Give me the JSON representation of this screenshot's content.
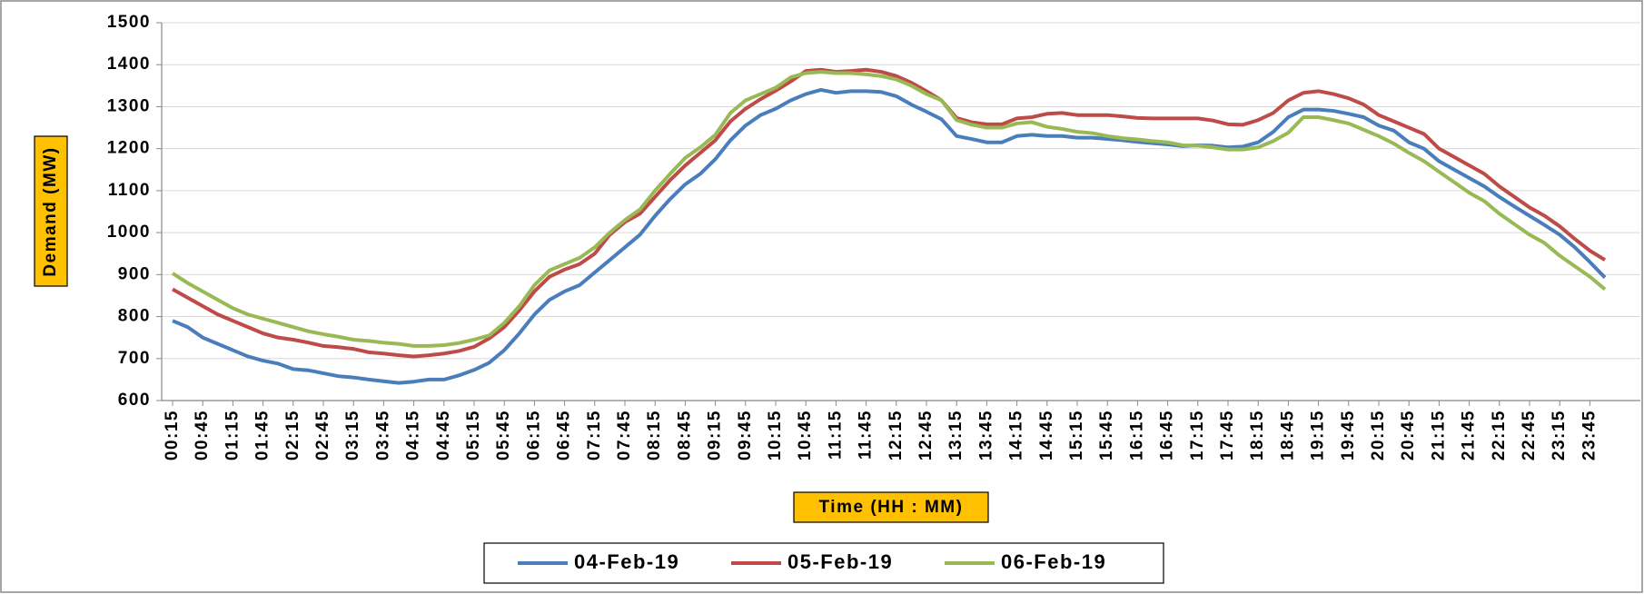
{
  "chart_data": {
    "type": "line",
    "x_label": "Time (HH : MM)",
    "y_label": "Demand (MW)",
    "categories": [
      "00:15",
      null,
      "00:45",
      null,
      "01:15",
      null,
      "01:45",
      null,
      "02:15",
      null,
      "02:45",
      null,
      "03:15",
      null,
      "03:45",
      null,
      "04:15",
      null,
      "04:45",
      null,
      "05:15",
      null,
      "05:45",
      null,
      "06:15",
      null,
      "06:45",
      null,
      "07:15",
      null,
      "07:45",
      null,
      "08:15",
      null,
      "08:45",
      null,
      "09:15",
      null,
      "09:45",
      null,
      "10:15",
      null,
      "10:45",
      null,
      "11:15",
      null,
      "11:45",
      null,
      "12:15",
      null,
      "12:45",
      null,
      "13:15",
      null,
      "13:45",
      null,
      "14:15",
      null,
      "14:45",
      null,
      "15:15",
      null,
      "15:45",
      null,
      "16:15",
      null,
      "16:45",
      null,
      "17:15",
      null,
      "17:45",
      null,
      "18:15",
      null,
      "18:45",
      null,
      "19:15",
      null,
      "19:45",
      null,
      "20:15",
      null,
      "20:45",
      null,
      "21:15",
      null,
      "21:45",
      null,
      "22:15",
      null,
      "22:45",
      null,
      "23:15",
      null,
      "23:45",
      null
    ],
    "series": [
      {
        "name": "04-Feb-19",
        "color": "#4a7ebb",
        "values": [
          790,
          775,
          750,
          735,
          720,
          705,
          695,
          688,
          675,
          672,
          665,
          658,
          655,
          650,
          646,
          642,
          645,
          650,
          650,
          660,
          673,
          690,
          720,
          760,
          805,
          840,
          860,
          875,
          905,
          935,
          965,
          995,
          1040,
          1080,
          1115,
          1140,
          1175,
          1220,
          1255,
          1280,
          1295,
          1315,
          1330,
          1340,
          1333,
          1337,
          1337,
          1335,
          1325,
          1305,
          1288,
          1270,
          1230,
          1223,
          1215,
          1215,
          1230,
          1233,
          1230,
          1230,
          1226,
          1226,
          1223,
          1220,
          1216,
          1213,
          1210,
          1206,
          1208,
          1207,
          1203,
          1205,
          1215,
          1240,
          1275,
          1293,
          1293,
          1290,
          1283,
          1275,
          1255,
          1243,
          1215,
          1200,
          1170,
          1150,
          1130,
          1110,
          1085,
          1062,
          1040,
          1018,
          995,
          965,
          930,
          893
        ]
      },
      {
        "name": "05-Feb-19",
        "color": "#be4b48",
        "values": [
          865,
          845,
          825,
          805,
          790,
          775,
          760,
          750,
          745,
          738,
          730,
          727,
          723,
          715,
          712,
          708,
          705,
          708,
          712,
          718,
          728,
          748,
          775,
          815,
          860,
          895,
          912,
          925,
          950,
          995,
          1025,
          1045,
          1085,
          1125,
          1160,
          1190,
          1220,
          1265,
          1295,
          1318,
          1338,
          1360,
          1385,
          1388,
          1383,
          1385,
          1388,
          1383,
          1373,
          1357,
          1337,
          1315,
          1273,
          1263,
          1258,
          1258,
          1272,
          1275,
          1283,
          1285,
          1280,
          1280,
          1280,
          1277,
          1273,
          1272,
          1272,
          1272,
          1272,
          1267,
          1258,
          1257,
          1268,
          1285,
          1315,
          1333,
          1337,
          1330,
          1320,
          1305,
          1280,
          1265,
          1250,
          1235,
          1200,
          1180,
          1160,
          1140,
          1110,
          1085,
          1060,
          1040,
          1015,
          985,
          957,
          935
        ]
      },
      {
        "name": "06-Feb-19",
        "color": "#98b954",
        "values": [
          903,
          880,
          860,
          840,
          820,
          805,
          795,
          785,
          775,
          765,
          758,
          752,
          745,
          742,
          738,
          735,
          730,
          730,
          732,
          737,
          745,
          755,
          785,
          825,
          875,
          910,
          925,
          940,
          965,
          1000,
          1030,
          1055,
          1100,
          1140,
          1178,
          1203,
          1233,
          1285,
          1315,
          1330,
          1345,
          1370,
          1380,
          1383,
          1380,
          1380,
          1377,
          1373,
          1365,
          1350,
          1330,
          1315,
          1268,
          1257,
          1250,
          1250,
          1260,
          1263,
          1252,
          1247,
          1240,
          1237,
          1230,
          1225,
          1222,
          1218,
          1215,
          1208,
          1207,
          1203,
          1198,
          1198,
          1203,
          1218,
          1238,
          1275,
          1275,
          1268,
          1260,
          1245,
          1230,
          1212,
          1190,
          1170,
          1145,
          1120,
          1095,
          1075,
          1045,
          1020,
          995,
          975,
          945,
          920,
          895,
          865
        ]
      }
    ],
    "ylim": [
      600,
      1500
    ],
    "yticks": [
      600,
      700,
      800,
      900,
      1000,
      1100,
      1200,
      1300,
      1400,
      1500
    ],
    "grid": true,
    "legend": "bottom"
  }
}
